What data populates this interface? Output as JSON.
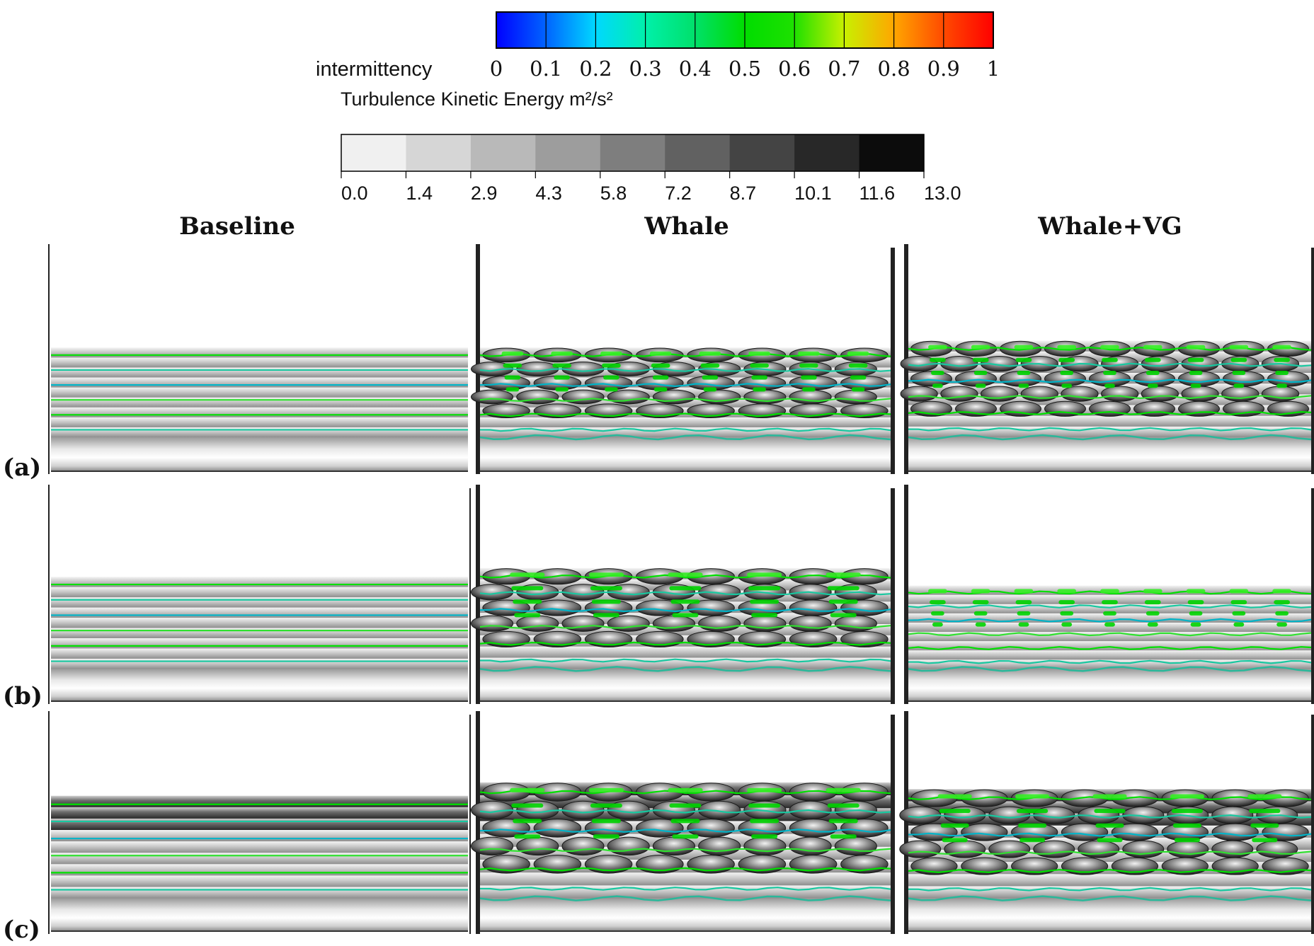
{
  "legend": {
    "intermittency": {
      "label": "intermittency",
      "ticks": [
        "0",
        "0.1",
        "0.2",
        "0.3",
        "0.4",
        "0.5",
        "0.6",
        "0.7",
        "0.8",
        "0.9",
        "1"
      ],
      "colors": [
        "#0000ff",
        "#0064ff",
        "#00d8ff",
        "#00f0aa",
        "#00e06a",
        "#00dd00",
        "#1ee000",
        "#c8f000",
        "#ffa600",
        "#ff4a00",
        "#ff0000"
      ]
    },
    "tke": {
      "label": "Turbulence Kinetic Energy m²/s²",
      "ticks": [
        "0.0",
        "1.4",
        "2.9",
        "4.3",
        "5.8",
        "7.2",
        "8.7",
        "10.1",
        "11.6",
        "13.0"
      ],
      "colors": [
        "#f0f0f0",
        "#d6d6d6",
        "#b9b9b9",
        "#9d9d9d",
        "#7e7e7e",
        "#616161",
        "#444444",
        "#282828",
        "#0c0c0c"
      ]
    }
  },
  "columns": [
    "Baseline",
    "Whale",
    "Whale+VG"
  ],
  "rows": [
    "(a)",
    "(b)",
    "(c)"
  ],
  "panels": [
    [
      {
        "case": "Baseline",
        "row": "(a)",
        "front": 0.45,
        "bumps": 0,
        "wavy": false,
        "greens": 0
      },
      {
        "case": "Whale",
        "row": "(a)",
        "front": 0.45,
        "bumps": 8,
        "wavy": true,
        "greens": 8
      },
      {
        "case": "Whale+VG",
        "row": "(a)",
        "front": 0.42,
        "bumps": 9,
        "wavy": true,
        "greens": 9
      }
    ],
    [
      {
        "case": "Baseline",
        "row": "(b)",
        "front": 0.42,
        "bumps": 0,
        "wavy": false,
        "greens": 0
      },
      {
        "case": "Whale",
        "row": "(b)",
        "front": 0.38,
        "bumps": 8,
        "wavy": true,
        "greens": 5
      },
      {
        "case": "Whale+VG",
        "row": "(b)",
        "front": 0.46,
        "bumps": 0,
        "wavy": true,
        "greens": 9
      }
    ],
    [
      {
        "case": "Baseline",
        "row": "(c)",
        "front": 0.38,
        "bumps": 0,
        "wavy": false,
        "greens": 0
      },
      {
        "case": "Whale",
        "row": "(c)",
        "front": 0.32,
        "bumps": 8,
        "wavy": true,
        "greens": 5
      },
      {
        "case": "Whale+VG",
        "row": "(c)",
        "front": 0.35,
        "bumps": 8,
        "wavy": true,
        "greens": 5
      }
    ]
  ]
}
